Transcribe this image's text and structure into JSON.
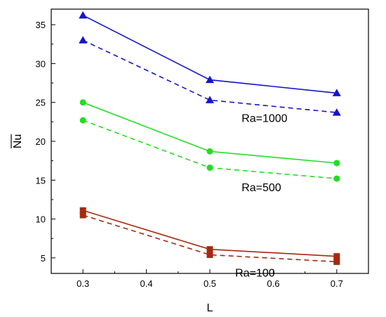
{
  "chart_data": {
    "type": "line",
    "title": "",
    "xlabel": "L",
    "ylabel": "Nu",
    "ylabel_overline": true,
    "xlim": [
      0.25,
      0.75
    ],
    "ylim": [
      3,
      37
    ],
    "xticks": [
      "0.3",
      "0.4",
      "0.5",
      "0.6",
      "0.7"
    ],
    "xtick_values": [
      0.3,
      0.4,
      0.5,
      0.6,
      0.7
    ],
    "yticks": [
      "5",
      "10",
      "15",
      "20",
      "25",
      "30",
      "35"
    ],
    "ytick_values": [
      5,
      10,
      15,
      20,
      25,
      30,
      35
    ],
    "grid": false,
    "x": [
      0.3,
      0.5,
      0.7
    ],
    "series": [
      {
        "group": "Ra=1000",
        "style": "solid",
        "color": "#1515c8",
        "marker": "triangle",
        "values": [
          36.2,
          27.9,
          26.2
        ]
      },
      {
        "group": "Ra=1000",
        "style": "dashed",
        "color": "#1515c8",
        "marker": "triangle",
        "values": [
          33.0,
          25.3,
          23.7
        ]
      },
      {
        "group": "Ra=500",
        "style": "solid",
        "color": "#22dd22",
        "marker": "circle",
        "values": [
          25.0,
          18.7,
          17.2
        ]
      },
      {
        "group": "Ra=500",
        "style": "dashed",
        "color": "#22dd22",
        "marker": "circle",
        "values": [
          22.7,
          16.6,
          15.2
        ]
      },
      {
        "group": "Ra=100",
        "style": "solid",
        "color": "#a52a10",
        "marker": "square",
        "values": [
          11.1,
          6.1,
          5.2
        ]
      },
      {
        "group": "Ra=100",
        "style": "dashed",
        "color": "#a52a10",
        "marker": "square",
        "values": [
          10.5,
          5.4,
          4.5
        ]
      }
    ],
    "annotations": [
      {
        "text": "Ra=1000",
        "x": 0.55,
        "y": 22.5
      },
      {
        "text": "Ra=500",
        "x": 0.55,
        "y": 13.6
      },
      {
        "text": "Ra=100",
        "x": 0.54,
        "y": 2.6
      }
    ]
  }
}
